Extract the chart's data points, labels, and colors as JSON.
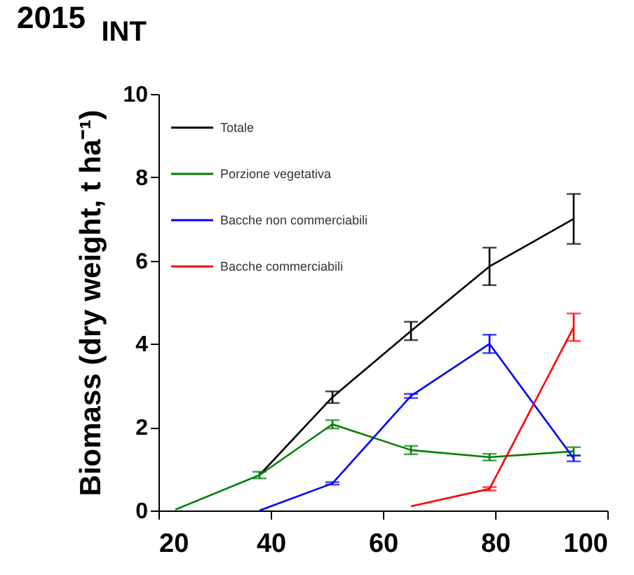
{
  "chart_data": {
    "type": "line",
    "title": "INT",
    "ylabel": "Biomass (dry weight, t ha⁻¹)",
    "annotations": [
      "2015"
    ],
    "x": [
      23,
      38,
      51,
      65,
      79,
      94
    ],
    "series": [
      {
        "name": "Totale",
        "color": "#000000",
        "values": [
          null,
          0.85,
          2.72,
          4.31,
          5.86,
          7.0
        ],
        "errors": [
          null,
          null,
          0.14,
          0.22,
          0.45,
          0.6
        ]
      },
      {
        "name": "Porzione vegetativa",
        "color": "#008000",
        "values": [
          0.02,
          0.85,
          2.07,
          1.45,
          1.28,
          1.42
        ],
        "errors": [
          null,
          0.08,
          0.1,
          0.1,
          0.08,
          0.1
        ]
      },
      {
        "name": "Bacche non commerciabili",
        "color": "#0000ff",
        "values": [
          null,
          0,
          0.65,
          2.75,
          4.0,
          1.25
        ],
        "errors": [
          null,
          null,
          0.03,
          0.05,
          0.22,
          0.07
        ]
      },
      {
        "name": "Bacche commerciabili",
        "color": "#ff0000",
        "values": [
          null,
          null,
          null,
          0.1,
          0.52,
          4.4
        ],
        "errors": [
          null,
          null,
          null,
          null,
          0.04,
          0.33
        ]
      }
    ],
    "xlim": [
      20,
      100
    ],
    "xticks": [
      20,
      40,
      60,
      80,
      100
    ],
    "ylim": [
      0,
      10
    ],
    "yticks": [
      0,
      2,
      4,
      6,
      8,
      10
    ],
    "grid": false,
    "legend": "top left",
    "marker": "none",
    "line_style": "solid"
  }
}
